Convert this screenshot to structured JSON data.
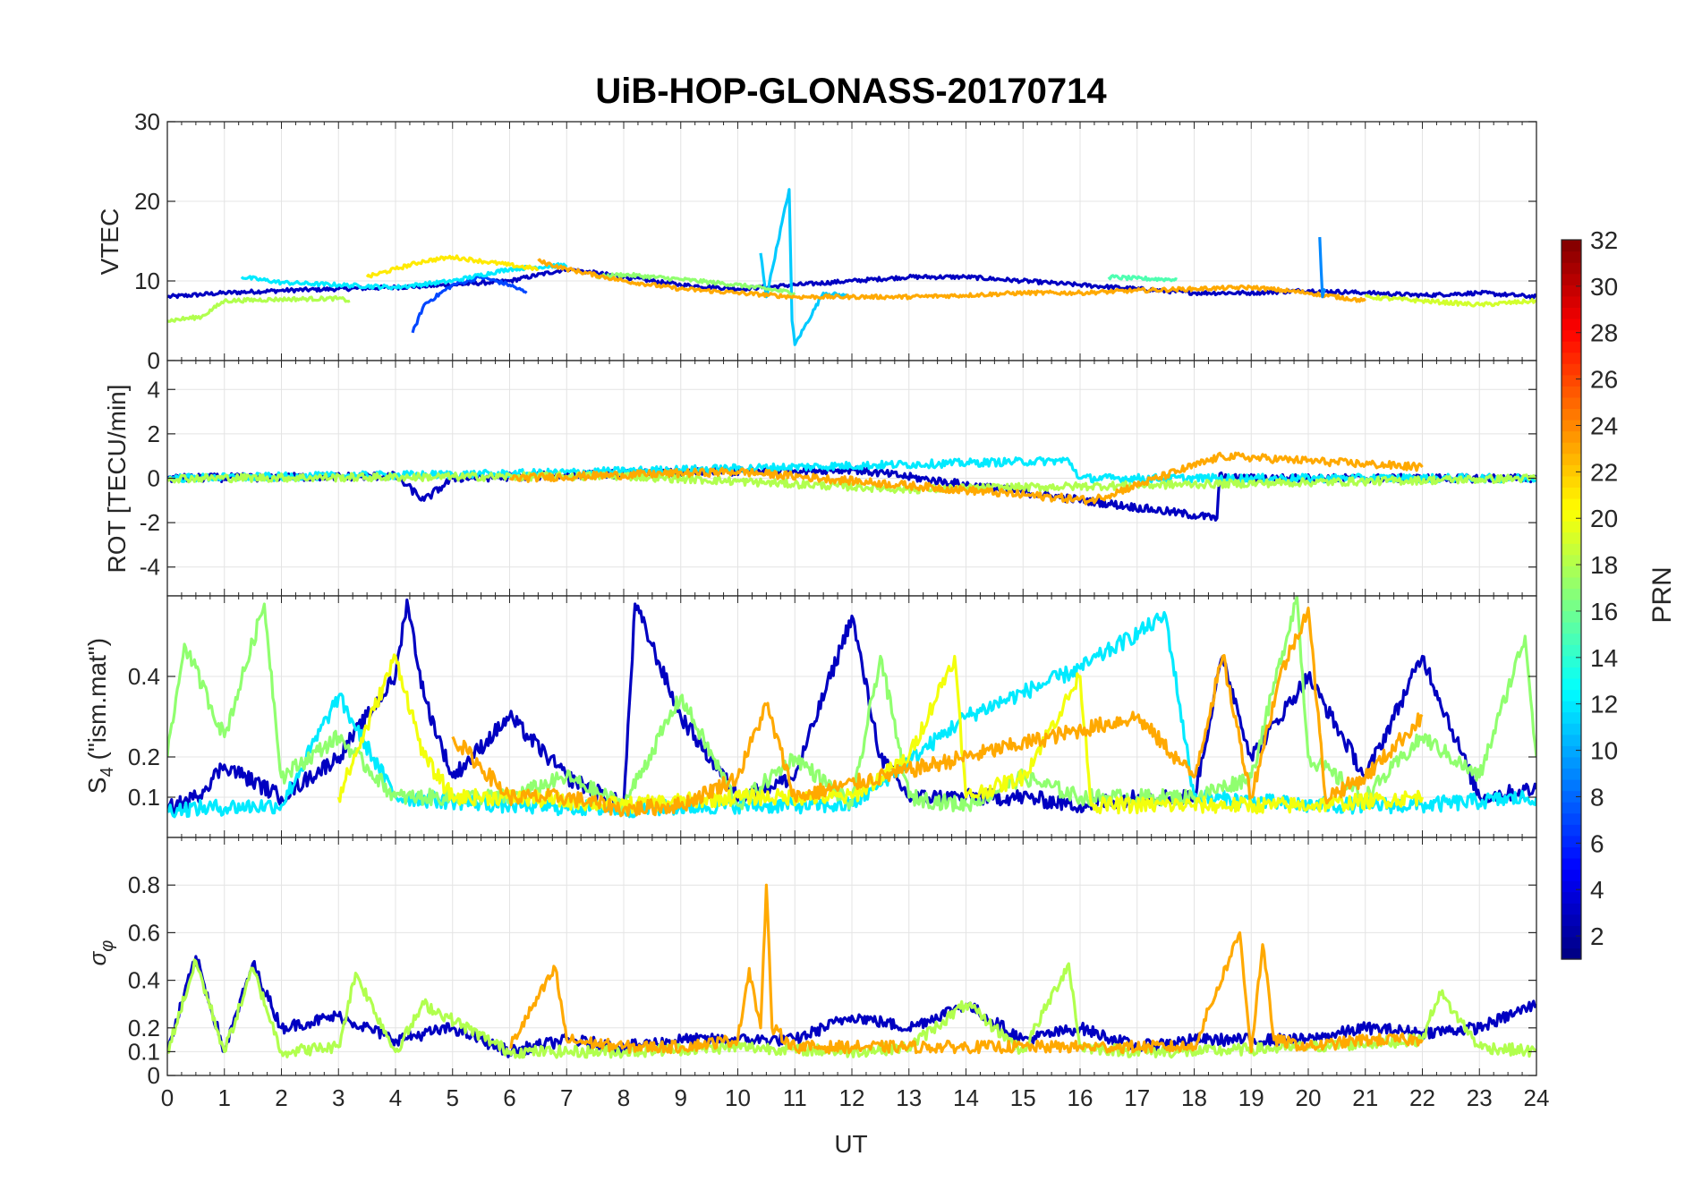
{
  "title": "UiB-HOP-GLONASS-20170714",
  "xlabel": "UT",
  "x_ticks": [
    "0",
    "1",
    "2",
    "3",
    "4",
    "5",
    "6",
    "7",
    "8",
    "9",
    "10",
    "11",
    "12",
    "13",
    "14",
    "15",
    "16",
    "17",
    "18",
    "19",
    "20",
    "21",
    "22",
    "23",
    "24"
  ],
  "colorbar": {
    "label": "PRN",
    "ticks": [
      "2",
      "4",
      "6",
      "8",
      "10",
      "12",
      "14",
      "16",
      "18",
      "20",
      "22",
      "24",
      "26",
      "28",
      "30",
      "32"
    ],
    "colormap": "jet",
    "range": [
      1,
      32
    ]
  },
  "chart_data": [
    {
      "type": "line",
      "panel": "vtec",
      "ylabel": "VTEC",
      "ylim": [
        0,
        30
      ],
      "y_ticks": [
        "0",
        "10",
        "20",
        "30"
      ],
      "xlim": [
        0,
        24
      ],
      "grid": true,
      "series": [
        {
          "prn": 3,
          "x": [
            0,
            1,
            2,
            3,
            4,
            5,
            6,
            7,
            8,
            9,
            10,
            11,
            12,
            13,
            14,
            15,
            16,
            17,
            18,
            19,
            20,
            21,
            22,
            23,
            24
          ],
          "y": [
            8,
            8.5,
            8.8,
            9,
            9.2,
            9.5,
            10,
            11.5,
            10.5,
            9.5,
            9,
            9.5,
            10,
            10.5,
            10.5,
            10,
            9.5,
            9,
            8.5,
            8.5,
            8.8,
            8.5,
            8.2,
            8.5,
            8
          ]
        },
        {
          "prn": 7,
          "x": [
            4.3,
            4.5,
            5,
            5.5,
            6,
            6.3
          ],
          "y": [
            3.5,
            7,
            9.5,
            10.5,
            9.5,
            8.5
          ]
        },
        {
          "prn": 11,
          "x": [
            10.4,
            10.5,
            10.9,
            10.95,
            11,
            11.5,
            12
          ],
          "y": [
            13.5,
            8,
            21.5,
            5,
            2,
            8.5,
            8
          ]
        },
        {
          "prn": 12,
          "x": [
            1.3,
            2,
            3,
            4,
            5,
            6,
            7
          ],
          "y": [
            10.5,
            9.8,
            9.5,
            9.2,
            10,
            11.5,
            12
          ]
        },
        {
          "prn": 15,
          "x": [
            16.5,
            17,
            17.7
          ],
          "y": [
            10.5,
            10.3,
            10.2
          ]
        },
        {
          "prn": 17,
          "x": [
            7.5,
            8,
            9,
            10,
            11
          ],
          "y": [
            10.5,
            10.8,
            10.2,
            9.5,
            8.5
          ]
        },
        {
          "prn": 18,
          "x": [
            0,
            0.6,
            1,
            2,
            3,
            3.2
          ],
          "y": [
            5,
            5.5,
            7.5,
            7.7,
            7.8,
            7.5
          ]
        },
        {
          "prn": 21,
          "x": [
            3.5,
            4,
            4.5,
            5,
            5.5,
            6,
            6.5
          ],
          "y": [
            10.5,
            11.5,
            12.5,
            13,
            12.5,
            12,
            11.5
          ]
        },
        {
          "prn": 23,
          "x": [
            6.5,
            7,
            8,
            9,
            10,
            11,
            12,
            13,
            14,
            15,
            16,
            17,
            18,
            19,
            20,
            21
          ],
          "y": [
            12.5,
            11.5,
            10,
            9,
            8.5,
            8,
            8,
            8,
            8.2,
            8.5,
            8.5,
            8.8,
            9,
            9.2,
            8.5,
            7.5
          ]
        },
        {
          "prn": 9,
          "x": [
            20.2,
            20.25,
            20.3
          ],
          "y": [
            15.5,
            8,
            9
          ]
        },
        {
          "prn": 19,
          "x": [
            21,
            22,
            23,
            24
          ],
          "y": [
            8,
            7.5,
            7,
            7.5
          ]
        }
      ]
    },
    {
      "type": "line",
      "panel": "rot",
      "ylabel": "ROT [TECU/min]",
      "ylim": [
        -5.3,
        5.3
      ],
      "y_ticks": [
        "-4",
        "-2",
        "0",
        "2",
        "4"
      ],
      "xlim": [
        0,
        24
      ],
      "grid": true,
      "series": [
        {
          "prn": 3,
          "x": [
            0,
            4,
            4.5,
            5,
            8,
            12,
            18.4,
            18.45,
            18.5,
            24
          ],
          "y": [
            0,
            0.1,
            -1,
            0,
            0.2,
            0.4,
            -1.8,
            0.2,
            0,
            0
          ]
        },
        {
          "prn": 12,
          "x": [
            0,
            6,
            15.8,
            16,
            24
          ],
          "y": [
            0,
            0.2,
            0.8,
            0,
            0
          ]
        },
        {
          "prn": 18,
          "x": [
            0,
            8,
            13,
            24
          ],
          "y": [
            0,
            0.1,
            -0.5,
            0
          ]
        },
        {
          "prn": 23,
          "x": [
            6,
            10,
            16.2,
            18.5,
            22
          ],
          "y": [
            0,
            0.3,
            -1,
            1,
            0.5
          ]
        }
      ]
    },
    {
      "type": "line",
      "panel": "s4",
      "ylabel": "S4 (\"ism.mat\")",
      "ylim": [
        0,
        0.6
      ],
      "y_ticks": [
        "0.1",
        "0.2",
        "0.4"
      ],
      "xlim": [
        0,
        24
      ],
      "grid": true,
      "series": [
        {
          "prn": 3,
          "x": [
            0,
            0.5,
            1,
            2,
            3,
            4,
            4.2,
            4.5,
            5,
            6,
            7,
            8,
            8.2,
            9,
            10,
            11,
            12,
            12.5,
            13,
            14,
            15,
            16,
            17,
            18,
            18.5,
            19,
            20,
            21,
            22,
            23,
            24
          ],
          "y": [
            0.07,
            0.1,
            0.18,
            0.1,
            0.2,
            0.4,
            0.59,
            0.35,
            0.15,
            0.3,
            0.15,
            0.08,
            0.58,
            0.3,
            0.1,
            0.15,
            0.55,
            0.2,
            0.1,
            0.1,
            0.1,
            0.08,
            0.1,
            0.1,
            0.45,
            0.2,
            0.4,
            0.15,
            0.45,
            0.1,
            0.12
          ]
        },
        {
          "prn": 12,
          "x": [
            0,
            2,
            3,
            4,
            6,
            8,
            10,
            12,
            14,
            16,
            17.5,
            18,
            20,
            22,
            24
          ],
          "y": [
            0.07,
            0.08,
            0.35,
            0.1,
            0.08,
            0.07,
            0.08,
            0.08,
            0.3,
            0.42,
            0.55,
            0.1,
            0.08,
            0.08,
            0.1
          ]
        },
        {
          "prn": 17,
          "x": [
            0,
            0.3,
            1,
            1.7,
            2,
            3,
            4,
            5,
            6,
            7,
            8,
            9,
            10,
            11,
            12,
            12.5,
            13,
            14,
            15,
            16,
            17,
            18,
            19,
            19.8,
            20,
            21,
            22,
            23,
            23.8,
            24
          ],
          "y": [
            0.2,
            0.48,
            0.25,
            0.58,
            0.15,
            0.25,
            0.1,
            0.1,
            0.1,
            0.15,
            0.08,
            0.35,
            0.08,
            0.2,
            0.08,
            0.45,
            0.1,
            0.08,
            0.15,
            0.1,
            0.1,
            0.1,
            0.15,
            0.6,
            0.2,
            0.1,
            0.25,
            0.15,
            0.5,
            0.2
          ]
        },
        {
          "prn": 20,
          "x": [
            3,
            4,
            4.5,
            5,
            6,
            8,
            10,
            12,
            13,
            13.8,
            14,
            15,
            16,
            16.2,
            18,
            20,
            22
          ],
          "y": [
            0.1,
            0.45,
            0.2,
            0.1,
            0.1,
            0.08,
            0.1,
            0.1,
            0.2,
            0.45,
            0.1,
            0.15,
            0.4,
            0.08,
            0.08,
            0.08,
            0.1
          ]
        },
        {
          "prn": 23,
          "x": [
            5,
            6,
            7,
            8,
            9,
            10,
            10.5,
            11,
            17,
            18,
            18.5,
            19,
            19.5,
            20,
            20.3,
            21,
            22
          ],
          "y": [
            0.25,
            0.1,
            0.1,
            0.07,
            0.08,
            0.15,
            0.33,
            0.1,
            0.3,
            0.15,
            0.45,
            0.1,
            0.4,
            0.57,
            0.1,
            0.15,
            0.3
          ]
        }
      ]
    },
    {
      "type": "line",
      "panel": "sigma_phi",
      "ylabel": "σφ",
      "ylim": [
        0,
        1
      ],
      "y_ticks": [
        "0",
        "0.1",
        "0.2",
        "0.4",
        "0.6",
        "0.8"
      ],
      "xlim": [
        0,
        24
      ],
      "grid": true,
      "series": [
        {
          "prn": 3,
          "x": [
            0,
            0.5,
            1,
            1.5,
            2,
            3,
            4,
            5,
            6,
            7,
            8,
            9,
            10,
            11,
            12,
            13,
            14,
            15,
            16,
            17,
            18,
            19,
            20,
            21,
            22,
            23,
            24
          ],
          "y": [
            0.1,
            0.5,
            0.1,
            0.47,
            0.2,
            0.25,
            0.15,
            0.2,
            0.1,
            0.15,
            0.12,
            0.15,
            0.15,
            0.15,
            0.25,
            0.2,
            0.3,
            0.15,
            0.2,
            0.12,
            0.15,
            0.15,
            0.15,
            0.2,
            0.18,
            0.2,
            0.3
          ]
        },
        {
          "prn": 18,
          "x": [
            0,
            0.5,
            1,
            1.5,
            2,
            3,
            3.3,
            4,
            4.5,
            6,
            8,
            10,
            12,
            13,
            14,
            15,
            15.8,
            16,
            17,
            18,
            20,
            22,
            22.3,
            23,
            24
          ],
          "y": [
            0.1,
            0.48,
            0.1,
            0.45,
            0.1,
            0.12,
            0.43,
            0.1,
            0.3,
            0.1,
            0.1,
            0.12,
            0.1,
            0.12,
            0.3,
            0.1,
            0.47,
            0.12,
            0.1,
            0.1,
            0.12,
            0.15,
            0.35,
            0.12,
            0.1
          ]
        },
        {
          "prn": 23,
          "x": [
            6,
            6.8,
            7,
            8,
            9,
            10,
            10.2,
            10.4,
            10.5,
            10.6,
            11,
            12,
            18,
            18.8,
            19,
            19.2,
            19.4,
            20,
            21,
            22
          ],
          "y": [
            0.12,
            0.45,
            0.15,
            0.12,
            0.12,
            0.15,
            0.45,
            0.2,
            0.8,
            0.2,
            0.12,
            0.12,
            0.12,
            0.6,
            0.1,
            0.55,
            0.15,
            0.12,
            0.15,
            0.15
          ]
        }
      ]
    }
  ]
}
